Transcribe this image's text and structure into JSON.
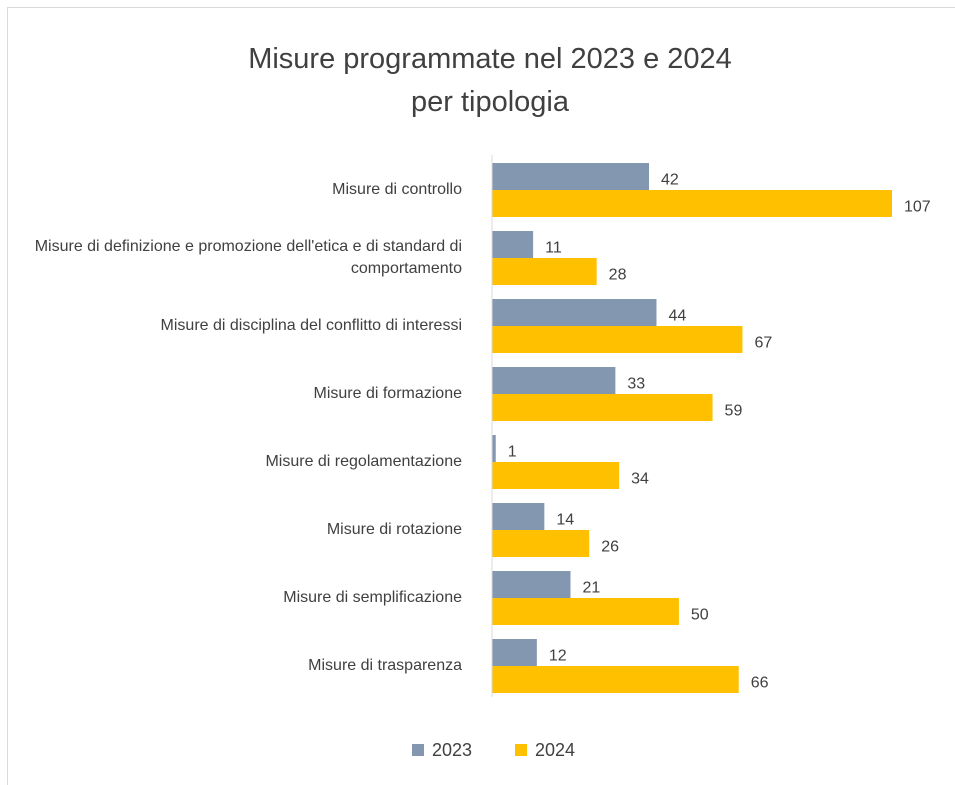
{
  "chart_data": {
    "type": "bar",
    "orientation": "horizontal",
    "title": "Misure programmate nel 2023 e 2024 per tipologia",
    "categories": [
      "Misure di controllo",
      "Misure di definizione e promozione dell'etica e di standard di comportamento",
      "Misure di disciplina del conflitto di interessi",
      "Misure di formazione",
      "Misure di regolamentazione",
      "Misure di rotazione",
      "Misure di semplificazione",
      "Misure di trasparenza"
    ],
    "series": [
      {
        "name": "2023",
        "color": "#8497b0",
        "values": [
          42,
          11,
          44,
          33,
          1,
          14,
          21,
          12
        ]
      },
      {
        "name": "2024",
        "color": "#ffc000",
        "values": [
          107,
          28,
          67,
          59,
          34,
          26,
          50,
          66
        ]
      }
    ],
    "legend": "bottom"
  }
}
